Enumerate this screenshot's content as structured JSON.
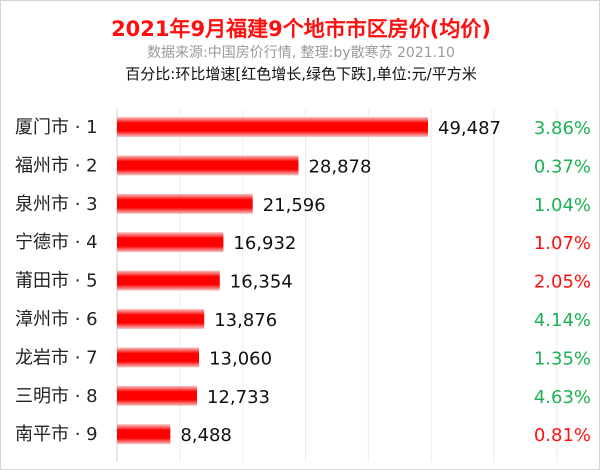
{
  "chart_data": {
    "type": "bar",
    "orientation": "horizontal",
    "title": "2021年9月福建9个地市市区房价(均价)",
    "subtitle": "数据来源:中国房价行情, 整理:by散寒苏 2021.10",
    "note": "百分比:环比增速[红色增长,绿色下跌],单位:元/平方米",
    "categories": [
      "厦门市 · 1",
      "福州市 · 2",
      "泉州市 · 3",
      "宁德市 · 4",
      "莆田市 · 5",
      "漳州市 · 6",
      "龙岩市 · 7",
      "三明市 · 8",
      "南平市 · 9"
    ],
    "values": [
      49487,
      28878,
      21596,
      16932,
      16354,
      13876,
      13060,
      12733,
      8488
    ],
    "value_labels": [
      "49,487",
      "28,878",
      "21,596",
      "16,932",
      "16,354",
      "13,876",
      "13,060",
      "12,733",
      "8,488"
    ],
    "percent_labels": [
      "3.86%",
      "0.37%",
      "1.04%",
      "1.07%",
      "2.05%",
      "4.14%",
      "1.35%",
      "4.63%",
      "0.81%"
    ],
    "percent_colors": [
      "#1db254",
      "#1db254",
      "#1db254",
      "#ff1010",
      "#ff1010",
      "#1db254",
      "#1db254",
      "#1db254",
      "#ff1010"
    ],
    "xlim": [
      0,
      75000
    ],
    "grid": true,
    "bar_color": "#ff0000"
  }
}
